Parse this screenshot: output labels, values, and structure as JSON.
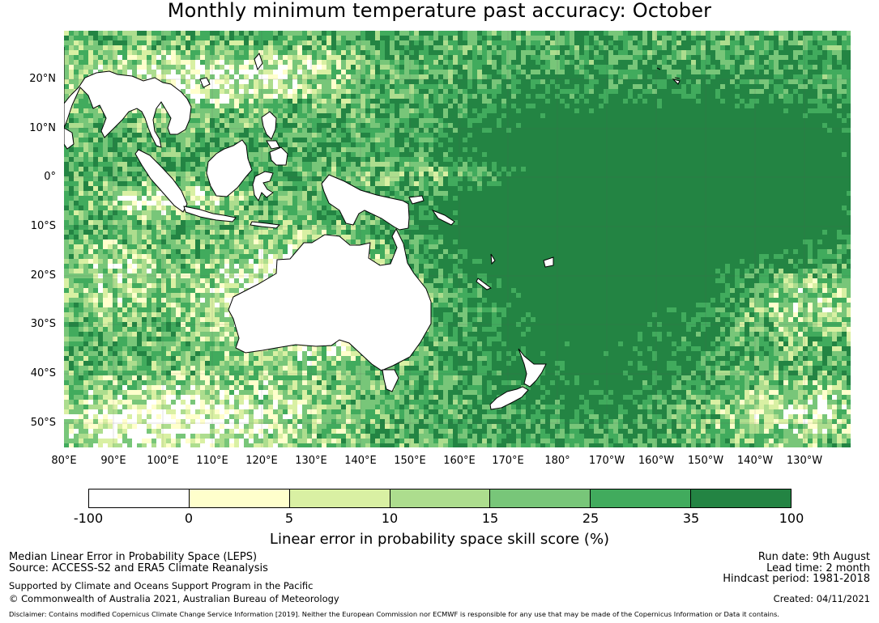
{
  "title": "Monthly minimum temperature past accuracy: October",
  "map": {
    "lon_range": [
      80,
      239
    ],
    "lat_range": [
      -55,
      30
    ],
    "lat_labels": [
      "20°N",
      "10°N",
      "0°",
      "10°S",
      "20°S",
      "30°S",
      "40°S",
      "50°S"
    ],
    "lon_labels": [
      "80°E",
      "90°E",
      "100°E",
      "110°E",
      "120°E",
      "130°E",
      "140°E",
      "150°E",
      "160°E",
      "170°E",
      "180°",
      "170°W",
      "160°W",
      "150°W",
      "140°W",
      "130°W"
    ]
  },
  "colorbar": {
    "ticks": [
      "-100",
      "0",
      "5",
      "10",
      "15",
      "25",
      "35",
      "100"
    ],
    "colors": [
      "#ffffff",
      "#ffffcc",
      "#d9f0a3",
      "#addd8e",
      "#78c679",
      "#41ab5d",
      "#238443"
    ],
    "label": "Linear error in probability space skill score (%)"
  },
  "footer": {
    "left_line1": "Median Linear Error in Probability Space (LEPS)",
    "left_line2": "Source: ACCESS-S2 and ERA5 Climate Reanalysis",
    "left_line3": "Supported by Climate and Oceans Support Program in the Pacific",
    "left_line4": "© Commonwealth of Australia 2021, Australian Bureau of Meteorology",
    "right_line1": "Run date: 9th August",
    "right_line2": "Lead time: 2 month",
    "right_line3": "Hindcast period: 1981-2018",
    "right_line4": "Created: 04/11/2021",
    "disclaimer": "Disclaimer: Contains modified Copernicus Climate Change Service Information [2019]. Neither the European Commission nor ECMWF is responsible for any use that may be made of the Copernicus Information or Data it contains."
  }
}
